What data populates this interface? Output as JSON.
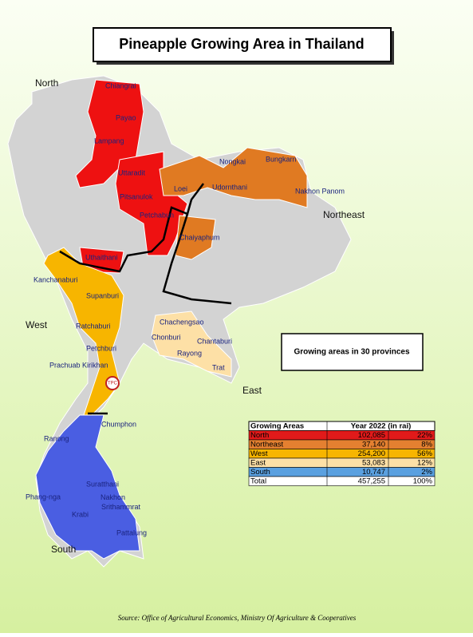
{
  "header": {
    "title": "Pineapple Growing Area in Thailand"
  },
  "regions": [
    "North",
    "Northeast",
    "West",
    "East",
    "South"
  ],
  "provinces": [
    "Chiangrai",
    "Payao",
    "Lampang",
    "Uttaradit",
    "Pitsanulok",
    "Petchabun",
    "Uthaithani",
    "Nongkai",
    "Bungkarn",
    "Loei",
    "Udornthani",
    "Nakhon Panom",
    "Chaiyaphum",
    "Kanchanaburi",
    "Supanburi",
    "Ratchaburi",
    "Petchburi",
    "Prachuab Kirikhan",
    "Chachengsao",
    "Chonburi",
    "Chantaburi",
    "Rayong",
    "Trat",
    "Chumphon",
    "Ranong",
    "Suratthani",
    "Phang-nga",
    "Nakhon Srithammrat",
    "Krabi",
    "Pattalung"
  ],
  "logo": "TPC",
  "note": "Growing areas in 30 provinces",
  "table": {
    "header": [
      "Growing Areas",
      "Year 2022 (in rai)"
    ],
    "rows": [
      [
        "North",
        "102,085",
        "22%"
      ],
      [
        "Northeast",
        "37,140",
        "8%"
      ],
      [
        "West",
        "254,200",
        "56%"
      ],
      [
        "East",
        "53,083",
        "12%"
      ],
      [
        "South",
        "10,747",
        "2%"
      ],
      [
        "Total",
        "457,255",
        "100%"
      ]
    ]
  },
  "source": "Source:  Office of Agricultural Economics, Ministry Of Agriculture & Cooperatives"
}
